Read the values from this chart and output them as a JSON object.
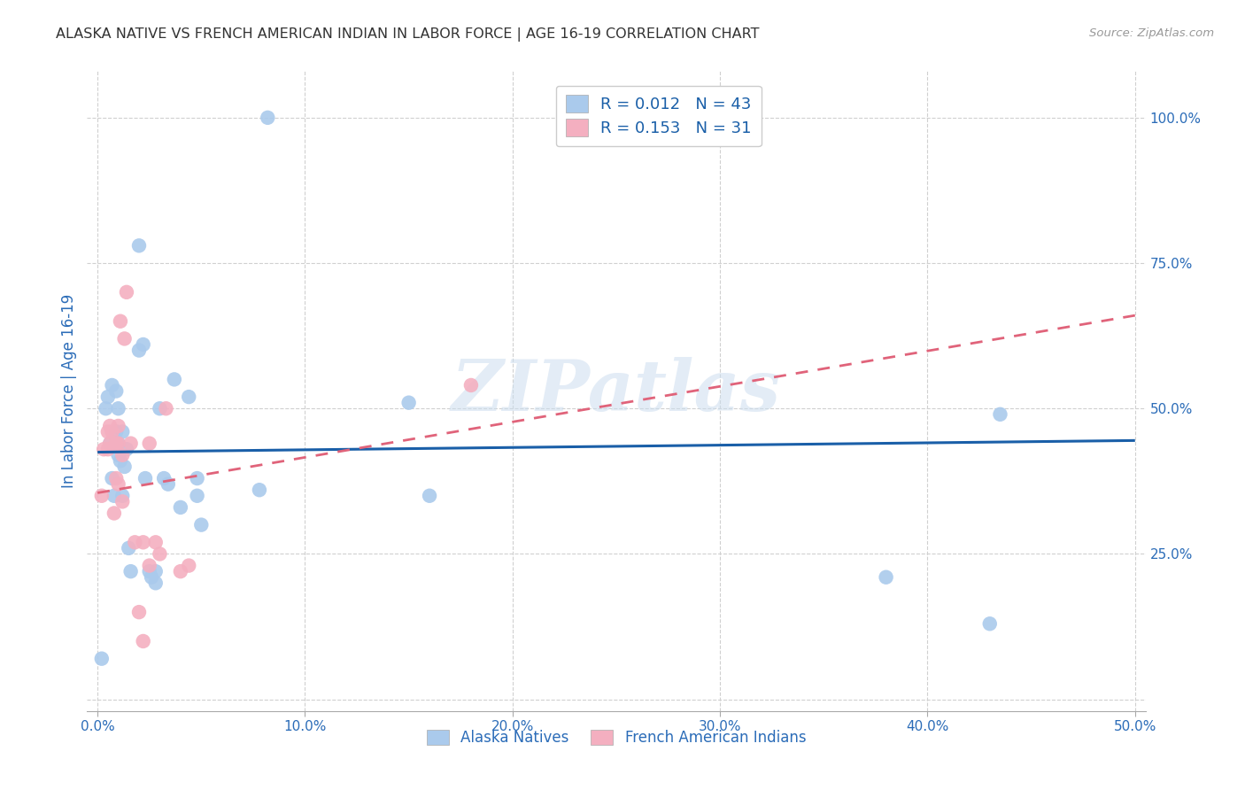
{
  "title": "ALASKA NATIVE VS FRENCH AMERICAN INDIAN IN LABOR FORCE | AGE 16-19 CORRELATION CHART",
  "source": "Source: ZipAtlas.com",
  "ylabel_label": "In Labor Force | Age 16-19",
  "xlim": [
    -0.005,
    0.505
  ],
  "ylim": [
    -0.02,
    1.08
  ],
  "xticks": [
    0.0,
    0.1,
    0.2,
    0.3,
    0.4,
    0.5
  ],
  "yticks": [
    0.0,
    0.25,
    0.5,
    0.75,
    1.0
  ],
  "xticklabels": [
    "0.0%",
    "10.0%",
    "20.0%",
    "30.0%",
    "40.0%",
    "50.0%"
  ],
  "yticklabels": [
    "",
    "25.0%",
    "50.0%",
    "75.0%",
    "100.0%"
  ],
  "blue_color": "#aacaec",
  "pink_color": "#f4afc0",
  "blue_line_color": "#1a5fa8",
  "pink_line_color": "#e0637a",
  "axis_label_color": "#2b6cb8",
  "tick_color": "#2b6cb8",
  "grid_color": "#d0d0d0",
  "watermark": "ZIPatlas",
  "legend_R_blue": "0.012",
  "legend_N_blue": "43",
  "legend_R_pink": "0.153",
  "legend_N_pink": "31",
  "blue_scatter_x": [
    0.002,
    0.004,
    0.005,
    0.006,
    0.007,
    0.007,
    0.008,
    0.009,
    0.009,
    0.01,
    0.01,
    0.01,
    0.011,
    0.012,
    0.012,
    0.013,
    0.014,
    0.015,
    0.016,
    0.02,
    0.022,
    0.023,
    0.025,
    0.026,
    0.028,
    0.028,
    0.03,
    0.032,
    0.034,
    0.037,
    0.04,
    0.044,
    0.048,
    0.05,
    0.078,
    0.082,
    0.15,
    0.16,
    0.38,
    0.43,
    0.435,
    0.048,
    0.02
  ],
  "blue_scatter_y": [
    0.07,
    0.5,
    0.52,
    0.44,
    0.38,
    0.54,
    0.35,
    0.46,
    0.53,
    0.42,
    0.44,
    0.5,
    0.41,
    0.35,
    0.46,
    0.4,
    0.43,
    0.26,
    0.22,
    0.78,
    0.61,
    0.38,
    0.22,
    0.21,
    0.22,
    0.2,
    0.5,
    0.38,
    0.37,
    0.55,
    0.33,
    0.52,
    0.35,
    0.3,
    0.36,
    1.0,
    0.51,
    0.35,
    0.21,
    0.13,
    0.49,
    0.38,
    0.6
  ],
  "pink_scatter_x": [
    0.002,
    0.003,
    0.005,
    0.005,
    0.006,
    0.006,
    0.007,
    0.008,
    0.009,
    0.009,
    0.01,
    0.01,
    0.011,
    0.012,
    0.012,
    0.013,
    0.014,
    0.016,
    0.018,
    0.02,
    0.022,
    0.022,
    0.025,
    0.025,
    0.028,
    0.03,
    0.033,
    0.04,
    0.044,
    0.18,
    0.01
  ],
  "pink_scatter_y": [
    0.35,
    0.43,
    0.43,
    0.46,
    0.44,
    0.47,
    0.46,
    0.32,
    0.38,
    0.44,
    0.37,
    0.44,
    0.65,
    0.42,
    0.34,
    0.62,
    0.7,
    0.44,
    0.27,
    0.15,
    0.1,
    0.27,
    0.23,
    0.44,
    0.27,
    0.25,
    0.5,
    0.22,
    0.23,
    0.54,
    0.47
  ],
  "blue_trend_x0": 0.0,
  "blue_trend_x1": 0.5,
  "blue_trend_y0": 0.425,
  "blue_trend_y1": 0.445,
  "pink_trend_x0": 0.0,
  "pink_trend_x1": 0.5,
  "pink_trend_y0": 0.355,
  "pink_trend_y1": 0.66
}
